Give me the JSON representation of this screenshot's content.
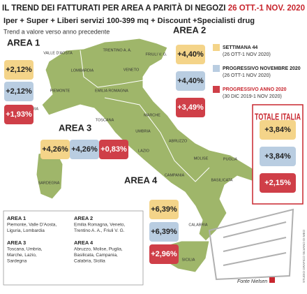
{
  "header": {
    "title": "IL TREND DEI FATTURATI PER AREA A PARITÀ DI NEGOZI",
    "date": "26 OTT.-1 NOV. 2020",
    "subtitle": "Iper + Super + Liberi servizi 100-399 mq + Discount +Specialisti drug",
    "note": "Trend a valore verso anno precedente"
  },
  "legend": [
    {
      "label": "SETTIMANA 44",
      "period": "(26 OTT-1 NOV 2020)"
    },
    {
      "label": "PROGRESSIVO NOVEMBRE 2020",
      "period": "(26 OTT-1 NOV 2020)"
    },
    {
      "label": "PROGRESSIVO ANNO 2020",
      "period": "(30 DIC 2019-1 NOV 2020)"
    }
  ],
  "total": {
    "title": "TOTALE ITALIA",
    "values": [
      "+3,84%",
      "+3,84%",
      "+2,15%"
    ]
  },
  "areas": [
    {
      "name": "AREA 1",
      "values": [
        "+2,12%",
        "+2,12%",
        "+1,93%"
      ]
    },
    {
      "name": "AREA 2",
      "values": [
        "+4,40%",
        "+4,40%",
        "+3,49%"
      ]
    },
    {
      "name": "AREA 3",
      "values": [
        "+4,26%",
        "+4,26%",
        "+0,83%"
      ]
    },
    {
      "name": "AREA 4",
      "values": [
        "+6,39%",
        "+6,39%",
        "+2,96%"
      ]
    }
  ],
  "regions": [
    "VALLE D'AOSTA",
    "TRENTINO A. A.",
    "FRIULI V. G.",
    "LOMBARDIA",
    "VENETO",
    "PIEMONTE",
    "EMILIA ROMAGNA",
    "LIGURIA",
    "TOSCANA",
    "MARCHE",
    "UMBRIA",
    "LAZIO",
    "ABRUZZO",
    "MOLISE",
    "PUGLIA",
    "CAMPANIA",
    "BASILICATA",
    "SARDEGNA",
    "CALABRIA",
    "SICILIA"
  ],
  "key": [
    {
      "name": "AREA 1",
      "lines": [
        "Piemonte, Valle D'Aosta,",
        "Liguria, Lombardia"
      ]
    },
    {
      "name": "AREA 2",
      "lines": [
        "Emilia Romagna, Veneto,",
        "Trentino A. A., Friuli V. G."
      ]
    },
    {
      "name": "AREA 3",
      "lines": [
        "Toscana, Umbria,",
        "Marche, Lazio,",
        "Sardegna"
      ]
    },
    {
      "name": "AREA 4",
      "lines": [
        "Abruzzo, Molise, Puglia,",
        "Basilicata, Campania,",
        "Calabria, Sicilia"
      ]
    }
  ],
  "footer": {
    "source": "Fonte Nielsen",
    "credit": "STUDIO GRAFICO SILVANO DI MEO"
  }
}
